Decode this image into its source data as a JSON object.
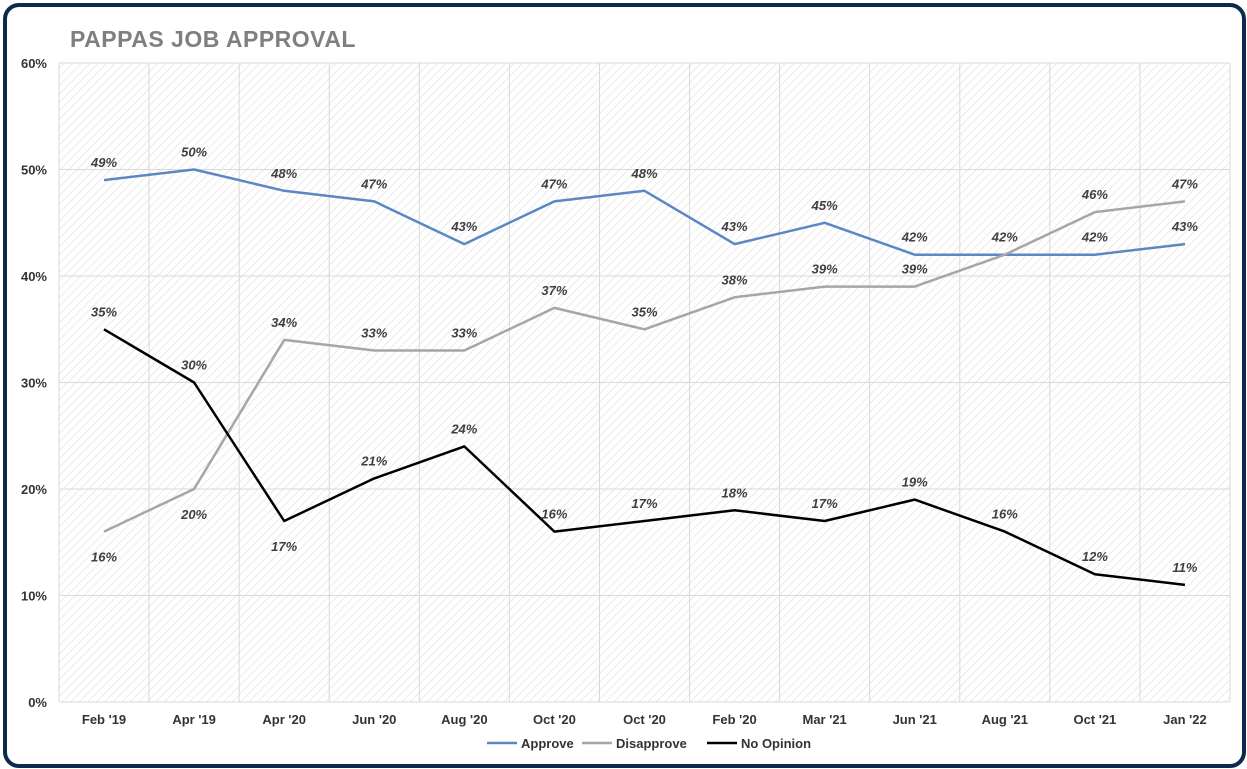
{
  "chart_data": {
    "type": "line",
    "title": "PAPPAS JOB APPROVAL",
    "categories": [
      "Feb '19",
      "Apr '19",
      "Apr '20",
      "Jun '20",
      "Aug '20",
      "Oct '20",
      "Oct '20",
      "Feb '20",
      "Mar '21",
      "Jun '21",
      "Aug '21",
      "Oct '21",
      "Jan '22"
    ],
    "ylim": [
      0,
      60
    ],
    "yticks": [
      "0%",
      "10%",
      "20%",
      "30%",
      "40%",
      "50%",
      "60%"
    ],
    "series": [
      {
        "name": "Approve",
        "color": "#5b87c4",
        "values": [
          49,
          50,
          48,
          47,
          43,
          47,
          48,
          43,
          45,
          42,
          42,
          42,
          43
        ],
        "labels": [
          "49%",
          "50%",
          "48%",
          "47%",
          "43%",
          "47%",
          "48%",
          "43%",
          "45%",
          "42%",
          "",
          "42%",
          "43%"
        ]
      },
      {
        "name": "Disapprove",
        "color": "#a6a6a6",
        "values": [
          16,
          20,
          34,
          33,
          33,
          37,
          35,
          38,
          39,
          39,
          42,
          46,
          47
        ],
        "labels": [
          "16%",
          "20%",
          "34%",
          "33%",
          "33%",
          "37%",
          "35%",
          "38%",
          "39%",
          "39%",
          "42%",
          "46%",
          "47%"
        ]
      },
      {
        "name": "No Opinion",
        "color": "#000000",
        "values": [
          35,
          30,
          17,
          21,
          24,
          16,
          17,
          18,
          17,
          19,
          16,
          12,
          11
        ],
        "labels": [
          "35%",
          "30%",
          "17%",
          "21%",
          "24%",
          "16%",
          "17%",
          "18%",
          "17%",
          "19%",
          "16%",
          "12%",
          "11%"
        ]
      }
    ],
    "grid": true,
    "legend_position": "bottom"
  }
}
